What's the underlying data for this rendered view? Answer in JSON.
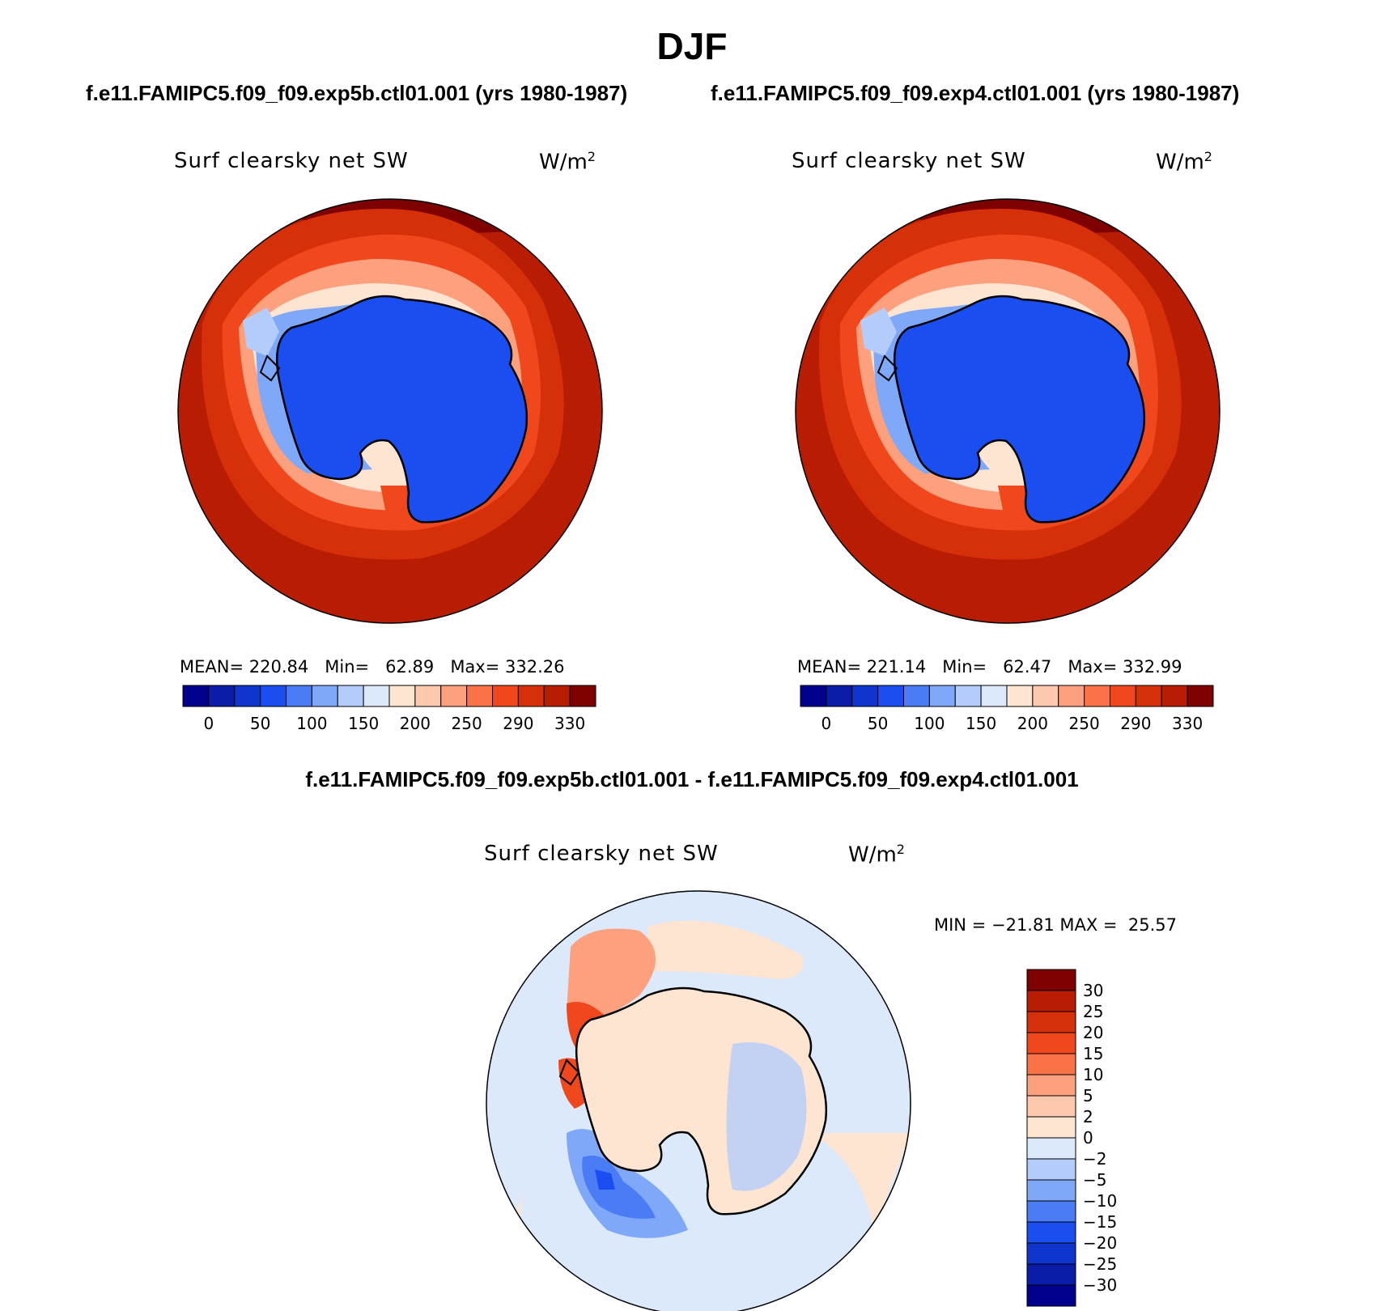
{
  "figure": {
    "title": "DJF",
    "left_case_title": "f.e11.FAMIPC5.f09_f09.exp5b.ctl01.001 (yrs 1980-1987)",
    "right_case_title": "f.e11.FAMIPC5.f09_f09.exp4.ctl01.001 (yrs 1980-1987)",
    "diff_title": "f.e11.FAMIPC5.f09_f09.exp5b.ctl01.001 - f.e11.FAMIPC5.f09_f09.exp4.ctl01.001"
  },
  "panels": {
    "left": {
      "variable": "Surf clearsky net SW",
      "units": "W/m",
      "units_exp": "2",
      "stats": {
        "mean_label": "MEAN=",
        "mean": "220.84",
        "min_label": "Min=",
        "min": "62.89",
        "max_label": "Max=",
        "max": "332.26"
      }
    },
    "right": {
      "variable": "Surf clearsky net SW",
      "units": "W/m",
      "units_exp": "2",
      "stats": {
        "mean_label": "MEAN=",
        "mean": "221.14",
        "min_label": "Min=",
        "min": "62.47",
        "max_label": "Max=",
        "max": "332.99"
      }
    },
    "diff": {
      "variable": "Surf clearsky net SW",
      "units": "W/m",
      "units_exp": "2",
      "stats": {
        "min_label": "MIN =",
        "min": "−21.81",
        "max_label": "MAX =",
        "max": "25.57"
      }
    }
  },
  "colorbars": {
    "abs": {
      "colors": [
        "#00008c",
        "#0a1ca8",
        "#0f35cc",
        "#1a4ef0",
        "#4a7cf5",
        "#80a8f8",
        "#b4ccfa",
        "#dce9fb",
        "#fde5d2",
        "#fdc9ae",
        "#fca07e",
        "#f97248",
        "#f0481c",
        "#d6300a",
        "#b81d04",
        "#7e0000"
      ],
      "labels": [
        "0",
        "50",
        "100",
        "150",
        "200",
        "250",
        "290",
        "330"
      ]
    },
    "diff": {
      "colors": [
        "#7e0000",
        "#b81d04",
        "#d6300a",
        "#f0481c",
        "#f97248",
        "#fca07e",
        "#fdc9ae",
        "#fde5d2",
        "#dce9fb",
        "#b4ccfa",
        "#80a8f8",
        "#4a7cf5",
        "#1a4ef0",
        "#0f35cc",
        "#0a1ca8",
        "#00008c"
      ],
      "labels": [
        "30",
        "25",
        "20",
        "15",
        "10",
        "5",
        "2",
        "0",
        "−2",
        "−5",
        "−10",
        "−15",
        "−20",
        "−25",
        "−30"
      ]
    }
  },
  "map_colors": {
    "ocean_warm": "#b81d04",
    "land_cold": "#1a4ef0",
    "diff_background": "#dce9fb"
  }
}
